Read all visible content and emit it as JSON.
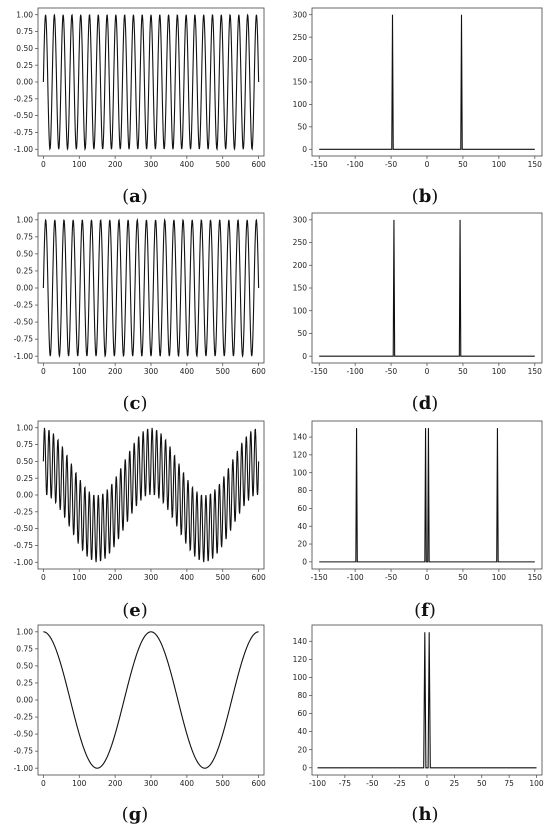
{
  "chart_data": [
    {
      "id": "a",
      "label": "a",
      "type": "line",
      "xlim": [
        -15,
        615
      ],
      "ylim": [
        -1.1,
        1.1
      ],
      "xticks": [
        0,
        100,
        200,
        300,
        400,
        500,
        600
      ],
      "yticks": [
        -1.0,
        -0.75,
        -0.5,
        -0.25,
        0.0,
        0.25,
        0.5,
        0.75,
        1.0
      ],
      "xtick_labels": [
        "0",
        "100",
        "200",
        "300",
        "400",
        "500",
        "600"
      ],
      "ytick_labels": [
        "-1.00",
        "-0.75",
        "-0.50",
        "-0.25",
        "0.00",
        "0.25",
        "0.50",
        "0.75",
        "1.00"
      ],
      "series": [
        {
          "kind": "sine",
          "x_range": [
            0,
            600
          ],
          "points": 600,
          "components": [
            {
              "amp": 1.0,
              "cycles_per_600": 24.5,
              "phase_deg": 0
            }
          ]
        }
      ]
    },
    {
      "id": "b",
      "label": "b",
      "type": "line",
      "xlim": [
        -160,
        160
      ],
      "ylim": [
        -15,
        315
      ],
      "xticks": [
        -150,
        -100,
        -50,
        0,
        50,
        100,
        150
      ],
      "yticks": [
        0,
        50,
        100,
        150,
        200,
        250,
        300
      ],
      "xtick_labels": [
        "-150",
        "-100",
        "-50",
        "0",
        "50",
        "100",
        "150"
      ],
      "ytick_labels": [
        "0",
        "50",
        "100",
        "150",
        "200",
        "250",
        "300"
      ],
      "series": [
        {
          "kind": "spikes",
          "x_range": [
            -150,
            150
          ],
          "spikes": [
            {
              "x": -48,
              "y": 300
            },
            {
              "x": 48,
              "y": 300
            }
          ]
        }
      ]
    },
    {
      "id": "c",
      "label": "c",
      "type": "line",
      "xlim": [
        -15,
        615
      ],
      "ylim": [
        -1.1,
        1.1
      ],
      "xticks": [
        0,
        100,
        200,
        300,
        400,
        500,
        600
      ],
      "yticks": [
        -1.0,
        -0.75,
        -0.5,
        -0.25,
        0.0,
        0.25,
        0.5,
        0.75,
        1.0
      ],
      "xtick_labels": [
        "0",
        "100",
        "200",
        "300",
        "400",
        "500",
        "600"
      ],
      "ytick_labels": [
        "-1.00",
        "-0.75",
        "-0.50",
        "-0.25",
        "0.00",
        "0.25",
        "0.50",
        "0.75",
        "1.00"
      ],
      "series": [
        {
          "kind": "sine",
          "x_range": [
            0,
            600
          ],
          "points": 600,
          "components": [
            {
              "amp": 1.0,
              "cycles_per_600": 23.5,
              "phase_deg": 0
            }
          ]
        }
      ]
    },
    {
      "id": "d",
      "label": "d",
      "type": "line",
      "xlim": [
        -160,
        160
      ],
      "ylim": [
        -15,
        315
      ],
      "xticks": [
        -150,
        -100,
        -50,
        0,
        50,
        100,
        150
      ],
      "yticks": [
        0,
        50,
        100,
        150,
        200,
        250,
        300
      ],
      "xtick_labels": [
        "-150",
        "-100",
        "-50",
        "0",
        "50",
        "100",
        "150"
      ],
      "ytick_labels": [
        "0",
        "50",
        "100",
        "150",
        "200",
        "250",
        "300"
      ],
      "series": [
        {
          "kind": "spikes",
          "x_range": [
            -150,
            150
          ],
          "spikes": [
            {
              "x": -46,
              "y": 300
            },
            {
              "x": 46,
              "y": 300
            }
          ]
        }
      ]
    },
    {
      "id": "e",
      "label": "e",
      "type": "line",
      "xlim": [
        -15,
        615
      ],
      "ylim": [
        -1.1,
        1.1
      ],
      "xticks": [
        0,
        100,
        200,
        300,
        400,
        500,
        600
      ],
      "yticks": [
        -1.0,
        -0.75,
        -0.5,
        -0.25,
        0.0,
        0.25,
        0.5,
        0.75,
        1.0
      ],
      "xtick_labels": [
        "0",
        "100",
        "200",
        "300",
        "400",
        "500",
        "600"
      ],
      "ytick_labels": [
        "-1.00",
        "-0.75",
        "-0.50",
        "-0.25",
        "0.00",
        "0.25",
        "0.50",
        "0.75",
        "1.00"
      ],
      "series": [
        {
          "kind": "beat",
          "x_range": [
            0,
            600
          ],
          "points": 600,
          "cycles_per_600_fast": 48,
          "cycles_per_600_slow": 2
        }
      ]
    },
    {
      "id": "f",
      "label": "f",
      "type": "line",
      "xlim": [
        -160,
        160
      ],
      "ylim": [
        -8,
        158
      ],
      "xticks": [
        -150,
        -100,
        -50,
        0,
        50,
        100,
        150
      ],
      "yticks": [
        0,
        20,
        40,
        60,
        80,
        100,
        120,
        140
      ],
      "xtick_labels": [
        "-150",
        "-100",
        "-50",
        "0",
        "50",
        "100",
        "150"
      ],
      "ytick_labels": [
        "0",
        "20",
        "40",
        "60",
        "80",
        "100",
        "120",
        "140"
      ],
      "series": [
        {
          "kind": "spikes",
          "x_range": [
            -150,
            150
          ],
          "spikes": [
            {
              "x": -98,
              "y": 150
            },
            {
              "x": -2,
              "y": 150
            },
            {
              "x": 2,
              "y": 150
            },
            {
              "x": 98,
              "y": 150
            }
          ]
        }
      ]
    },
    {
      "id": "g",
      "label": "g",
      "type": "line",
      "xlim": [
        -15,
        615
      ],
      "ylim": [
        -1.1,
        1.1
      ],
      "xticks": [
        0,
        100,
        200,
        300,
        400,
        500,
        600
      ],
      "yticks": [
        -1.0,
        -0.75,
        -0.5,
        -0.25,
        0.0,
        0.25,
        0.5,
        0.75,
        1.0
      ],
      "xtick_labels": [
        "0",
        "100",
        "200",
        "300",
        "400",
        "500",
        "600"
      ],
      "ytick_labels": [
        "-1.00",
        "-0.75",
        "-0.50",
        "-0.25",
        "0.00",
        "0.25",
        "0.50",
        "0.75",
        "1.00"
      ],
      "series": [
        {
          "kind": "cosine",
          "x_range": [
            0,
            600
          ],
          "points": 600,
          "components": [
            {
              "amp": 1.0,
              "cycles_per_600": 2,
              "phase_deg": 90
            }
          ]
        }
      ]
    },
    {
      "id": "h",
      "label": "h",
      "type": "line",
      "xlim": [
        -105,
        105
      ],
      "ylim": [
        -8,
        158
      ],
      "xticks": [
        -100,
        -75,
        -50,
        -25,
        0,
        25,
        50,
        75,
        100
      ],
      "yticks": [
        0,
        20,
        40,
        60,
        80,
        100,
        120,
        140
      ],
      "xtick_labels": [
        "-100",
        "-75",
        "-50",
        "-25",
        "0",
        "25",
        "50",
        "75",
        "100"
      ],
      "ytick_labels": [
        "0",
        "20",
        "40",
        "60",
        "80",
        "100",
        "120",
        "140"
      ],
      "series": [
        {
          "kind": "spikes",
          "x_range": [
            -100,
            100
          ],
          "spikes": [
            {
              "x": -2,
              "y": 150
            },
            {
              "x": 2,
              "y": 150
            }
          ]
        }
      ]
    }
  ]
}
